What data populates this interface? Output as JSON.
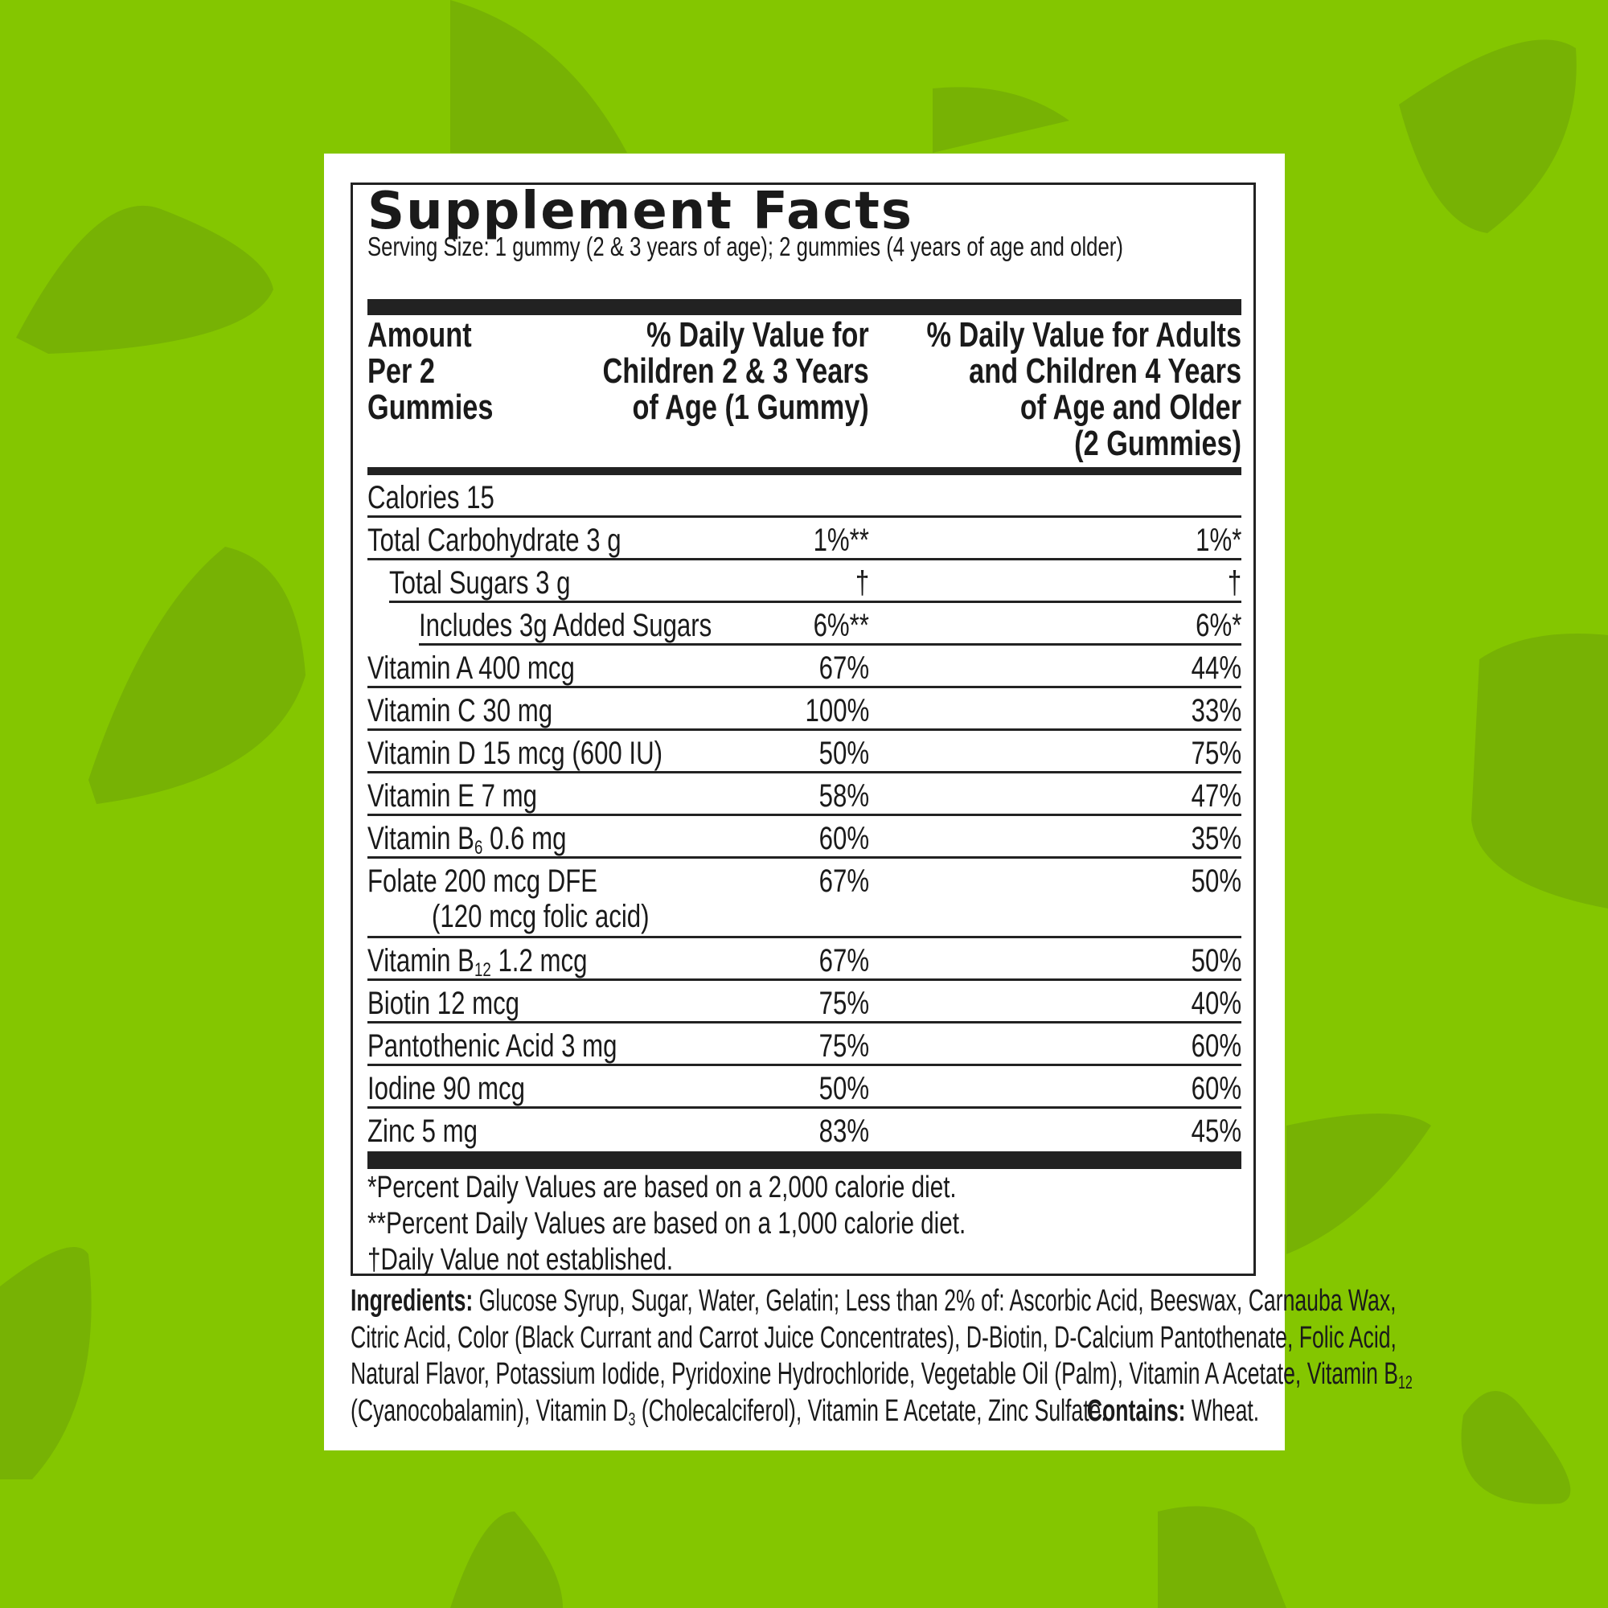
{
  "colors": {
    "background": "#84c600",
    "leaf": "#76b000",
    "panel": "#ffffff",
    "ink": "#1a1a1a"
  },
  "title": "Supplement Facts",
  "serving_size": "Serving Size: 1 gummy (2 & 3 years of age); 2 gummies (4 years of age and older)",
  "headers": {
    "amount": [
      "Amount",
      "Per 2",
      "Gummies"
    ],
    "children": [
      "% Daily Value for",
      "Children 2 & 3 Years",
      "of Age (1 Gummy)"
    ],
    "adults": [
      "% Daily Value for Adults",
      "and Children 4 Years",
      "of Age and Older",
      "(2 Gummies)"
    ]
  },
  "rows": [
    {
      "name": "Calories 15",
      "child": "",
      "adult": ""
    },
    {
      "name": "Total Carbohydrate 3 g",
      "child": "1%**",
      "adult": "1%*"
    },
    {
      "name": "Total Sugars 3 g",
      "child": "†",
      "adult": "†"
    },
    {
      "name": "Includes 3g Added Sugars",
      "child": "6%**",
      "adult": "6%*"
    },
    {
      "name": "Vitamin A 400 mcg",
      "child": "67%",
      "adult": "44%"
    },
    {
      "name": "Vitamin C 30 mg",
      "child": "100%",
      "adult": "33%"
    },
    {
      "name": "Vitamin D 15 mcg (600 IU)",
      "child": "50%",
      "adult": "75%"
    },
    {
      "name": "Vitamin E 7 mg",
      "child": "58%",
      "adult": "47%"
    },
    {
      "name": "Vitamin B",
      "sub": "6",
      "name_rest": " 0.6 mg",
      "child": "60%",
      "adult": "35%"
    },
    {
      "name": "Folate 200 mcg DFE",
      "name2": "(120 mcg folic acid)",
      "child": "67%",
      "adult": "50%"
    },
    {
      "name": "Vitamin B",
      "sub": "12",
      "name_rest": " 1.2 mcg",
      "child": "67%",
      "adult": "50%"
    },
    {
      "name": "Biotin 12 mcg",
      "child": "75%",
      "adult": "40%"
    },
    {
      "name": "Pantothenic Acid 3 mg",
      "child": "75%",
      "adult": "60%"
    },
    {
      "name": "Iodine 90 mcg",
      "child": "50%",
      "adult": "60%"
    },
    {
      "name": "Zinc 5 mg",
      "child": "83%",
      "adult": "45%"
    }
  ],
  "footnotes": [
    "*Percent Daily Values are based on a 2,000 calorie diet.",
    "**Percent Daily Values are based on a 1,000 calorie diet.",
    "†Daily Value not established."
  ],
  "ingredients": {
    "label": "Ingredients:",
    "line1": " Glucose Syrup, Sugar, Water, Gelatin; Less than 2% of: Ascorbic Acid, Beeswax, Carnauba Wax,",
    "line2": "Citric Acid, Color (Black Currant and Carrot Juice Concentrates), D-Biotin, D-Calcium Pantothenate, Folic Acid,",
    "line3": "Natural Flavor, Potassium Iodide, Pyridoxine Hydrochloride, Vegetable Oil (Palm), Vitamin A Acetate, Vitamin B",
    "line3_sub": "12",
    "line4a": "(Cyanocobalamin), Vitamin D",
    "line4_sub": "3",
    "line4b": " (Cholecalciferol), Vitamin E Acetate, Zinc Sulfate.",
    "contains_label": "Contains:",
    "contains_value": " Wheat."
  }
}
